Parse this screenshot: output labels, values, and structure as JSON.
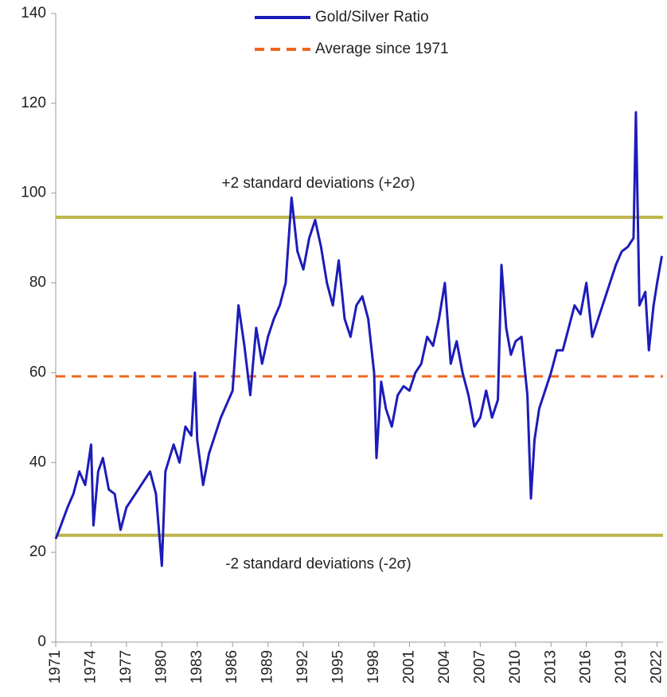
{
  "chart_data": {
    "type": "line",
    "series": [
      {
        "name": "Gold/Silver Ratio",
        "color": "#1c1cba",
        "x": [
          1971.0,
          1971.3,
          1972,
          1972.5,
          1973,
          1973.5,
          1974.0,
          1974.2,
          1974.6,
          1975,
          1975.5,
          1976,
          1976.5,
          1977,
          1978,
          1979,
          1979.5,
          1980.0,
          1980.3,
          1981,
          1981.5,
          1982,
          1982.5,
          1982.8,
          1983,
          1983.5,
          1984,
          1984.5,
          1985,
          1985.5,
          1986,
          1986.5,
          1987,
          1987.5,
          1988,
          1988.5,
          1989,
          1989.5,
          1990,
          1990.5,
          1991,
          1991.5,
          1992,
          1992.5,
          1993,
          1993.5,
          1994,
          1994.5,
          1995,
          1995.5,
          1996,
          1996.5,
          1997,
          1997.5,
          1998,
          1998.2,
          1998.6,
          1999,
          1999.5,
          2000,
          2000.5,
          2001,
          2001.5,
          2002,
          2002.5,
          2003,
          2003.5,
          2004,
          2004.5,
          2005,
          2005.5,
          2006,
          2006.5,
          2007,
          2007.5,
          2008,
          2008.5,
          2008.8,
          2009.2,
          2009.6,
          2010,
          2010.5,
          2011,
          2011.3,
          2011.6,
          2012,
          2012.5,
          2013,
          2013.5,
          2014,
          2014.5,
          2015,
          2015.5,
          2016,
          2016.5,
          2017,
          2017.5,
          2018,
          2018.5,
          2019,
          2019.5,
          2020.0,
          2020.2,
          2020.5,
          2021,
          2021.3,
          2021.7,
          2022,
          2022.4
        ],
        "values": [
          23,
          25,
          30,
          33,
          38,
          35,
          44,
          26,
          38,
          41,
          34,
          33,
          25,
          30,
          34,
          38,
          33,
          17,
          38,
          44,
          40,
          48,
          46,
          60,
          45,
          35,
          42,
          46,
          50,
          53,
          56,
          75,
          66,
          55,
          70,
          62,
          68,
          72,
          75,
          80,
          99,
          87,
          83,
          90,
          94,
          88,
          80,
          75,
          85,
          72,
          68,
          75,
          77,
          72,
          60,
          41,
          58,
          52,
          48,
          55,
          57,
          56,
          60,
          62,
          68,
          66,
          72,
          80,
          62,
          67,
          60,
          55,
          48,
          50,
          56,
          50,
          54,
          84,
          70,
          64,
          67,
          68,
          55,
          32,
          45,
          52,
          56,
          60,
          65,
          65,
          70,
          75,
          73,
          80,
          68,
          72,
          76,
          80,
          84,
          87,
          88,
          90,
          118,
          75,
          78,
          65,
          75,
          80,
          86
        ]
      }
    ],
    "reference_lines": [
      {
        "label": "+2 standard deviations (+2σ)",
        "value": 94.6,
        "color": "#bdb54a"
      },
      {
        "name": "Average since 1971",
        "value": 59.2,
        "color": "#f26522",
        "dashed": true
      },
      {
        "label": "-2 standard deviations (-2σ)",
        "value": 23.8,
        "color": "#bdb54a"
      }
    ],
    "xlim": [
      1971,
      2022.5
    ],
    "xticks": [
      1971,
      1974,
      1977,
      1980,
      1983,
      1986,
      1989,
      1992,
      1995,
      1998,
      2001,
      2004,
      2007,
      2010,
      2013,
      2016,
      2019,
      2022
    ],
    "ylim": [
      0,
      140
    ],
    "yticks": [
      0,
      20,
      40,
      60,
      80,
      100,
      120,
      140
    ]
  }
}
